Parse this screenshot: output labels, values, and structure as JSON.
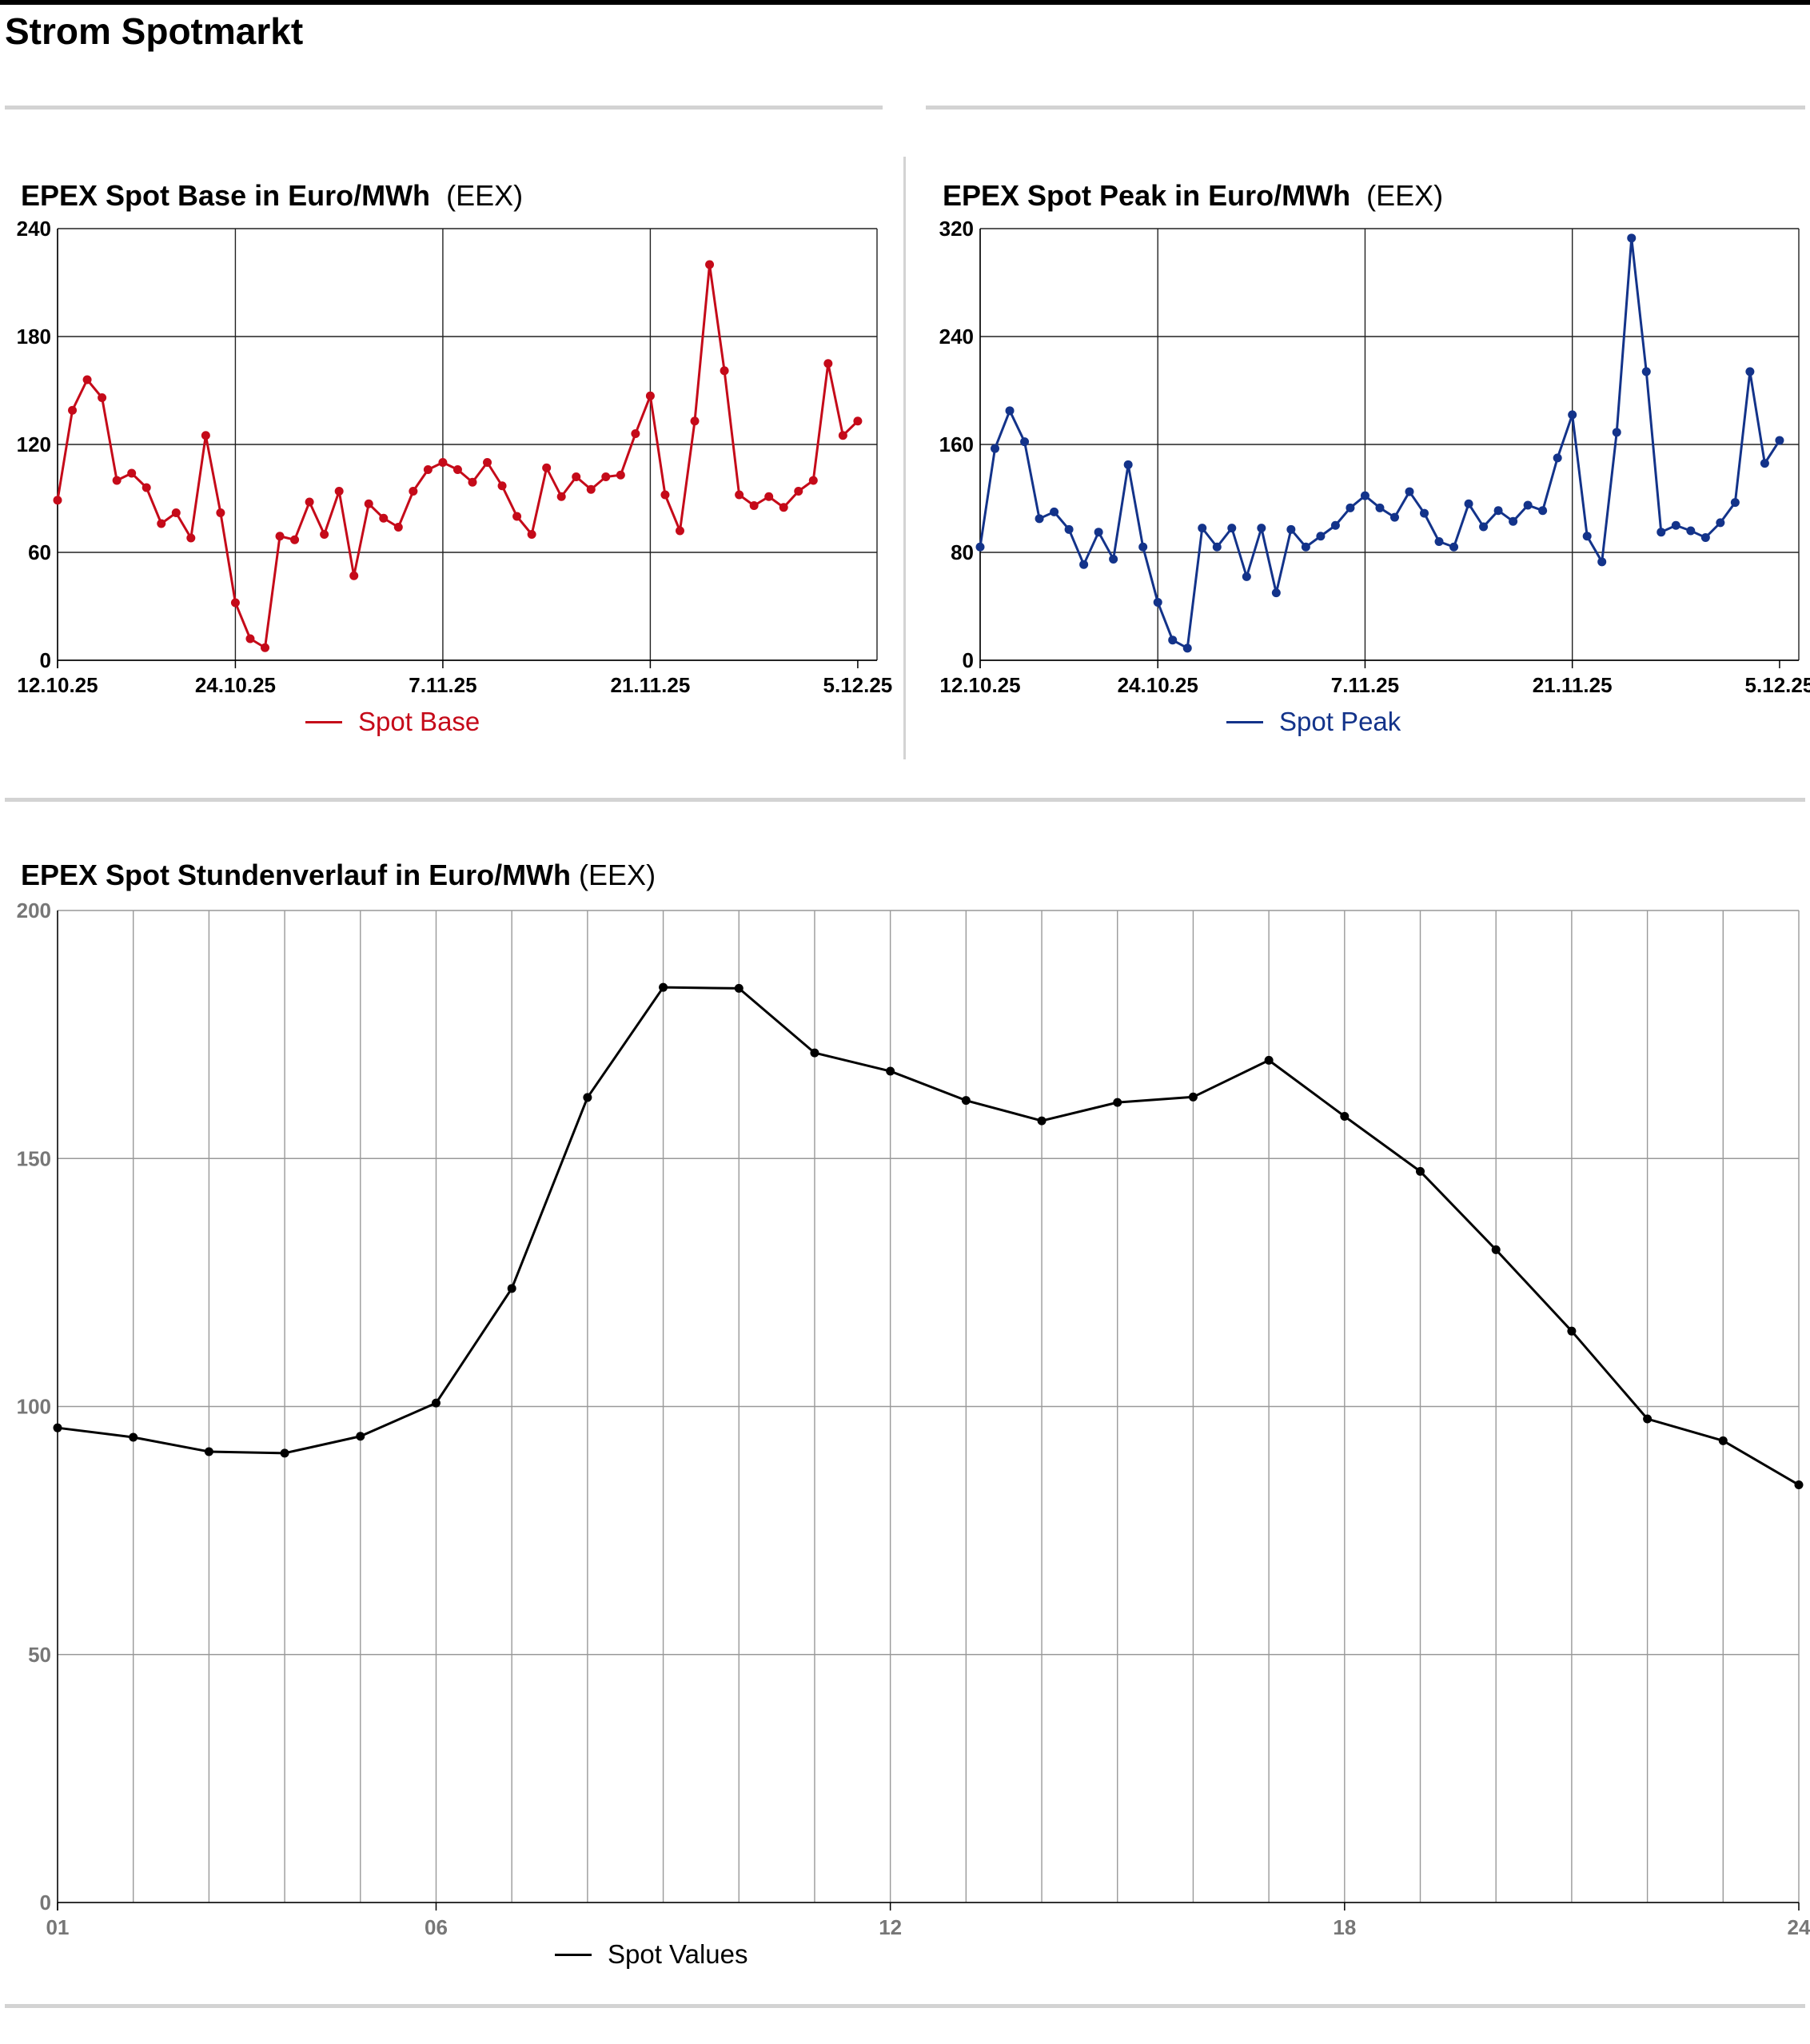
{
  "page": {
    "title": "Strom Spotmarkt"
  },
  "charts": {
    "base": {
      "title": "EPEX Spot Base in Euro/MWh",
      "source": "(EEX)",
      "legend": "Spot Base",
      "color": "#c50a19"
    },
    "peak": {
      "title": "EPEX Spot Peak in Euro/MWh",
      "source": "(EEX)",
      "legend": "Spot Peak",
      "color": "#13338a"
    },
    "hourly": {
      "title": "EPEX Spot Stundenverlauf in Euro/MWh",
      "source": "(EEX)",
      "legend": "Spot Values",
      "color": "#000000"
    }
  },
  "chart_data": [
    {
      "type": "line",
      "title": "EPEX Spot Base in Euro/MWh",
      "x_start": 0,
      "x_end": 55,
      "ylim": [
        0,
        240
      ],
      "yticks": [
        0,
        60,
        120,
        180,
        240
      ],
      "xticks": [
        {
          "pos": 0,
          "label": "12.10.25"
        },
        {
          "pos": 12,
          "label": "24.10.25"
        },
        {
          "pos": 26,
          "label": "7.11.25"
        },
        {
          "pos": 40,
          "label": "21.11.25"
        },
        {
          "pos": 54,
          "label": "5.12.25"
        }
      ],
      "grid": true,
      "legend_position": "bottom",
      "series": [
        {
          "name": "Spot Base",
          "values": [
            89,
            139,
            156,
            146,
            100,
            104,
            96,
            76,
            82,
            68,
            125,
            82,
            32,
            12,
            7,
            69,
            67,
            88,
            70,
            94,
            47,
            87,
            79,
            74,
            94,
            106,
            110,
            106,
            99,
            110,
            97,
            80,
            70,
            107,
            91,
            102,
            95,
            102,
            103,
            126,
            147,
            92,
            72,
            133,
            220,
            161,
            92,
            86,
            91,
            85,
            94,
            100,
            165,
            125,
            133
          ]
        }
      ]
    },
    {
      "type": "line",
      "title": "EPEX Spot Peak in Euro/MWh",
      "x_start": 0,
      "x_end": 55,
      "ylim": [
        0,
        320
      ],
      "yticks": [
        0,
        80,
        160,
        240,
        320
      ],
      "xticks": [
        {
          "pos": 0,
          "label": "12.10.25"
        },
        {
          "pos": 12,
          "label": "24.10.25"
        },
        {
          "pos": 26,
          "label": "7.11.25"
        },
        {
          "pos": 40,
          "label": "21.11.25"
        },
        {
          "pos": 54,
          "label": "5.12.25"
        }
      ],
      "grid": true,
      "legend_position": "bottom",
      "series": [
        {
          "name": "Spot Peak",
          "values": [
            84,
            157,
            185,
            162,
            105,
            110,
            97,
            71,
            95,
            75,
            145,
            84,
            43,
            15,
            9,
            98,
            84,
            98,
            62,
            98,
            50,
            97,
            84,
            92,
            100,
            113,
            122,
            113,
            106,
            125,
            109,
            88,
            84,
            116,
            99,
            111,
            103,
            115,
            111,
            150,
            182,
            92,
            73,
            169,
            313,
            214,
            95,
            100,
            96,
            91,
            102,
            117,
            214,
            146,
            163
          ]
        }
      ]
    },
    {
      "type": "line",
      "title": "EPEX Spot Stundenverlauf in Euro/MWh",
      "x": [
        1,
        2,
        3,
        4,
        5,
        6,
        7,
        8,
        9,
        10,
        11,
        12,
        13,
        14,
        15,
        16,
        17,
        18,
        19,
        20,
        21,
        22,
        23,
        24
      ],
      "ylim": [
        0,
        200
      ],
      "yticks": [
        0,
        50,
        100,
        150,
        200
      ],
      "xticks": [
        {
          "pos": 1,
          "label": "01"
        },
        {
          "pos": 6,
          "label": "06"
        },
        {
          "pos": 12,
          "label": "12"
        },
        {
          "pos": 18,
          "label": "18"
        },
        {
          "pos": 24,
          "label": "24"
        }
      ],
      "grid": true,
      "legend_position": "bottom",
      "series": [
        {
          "name": "Spot Values",
          "values": [
            95.7,
            93.8,
            90.9,
            90.6,
            94,
            100.7,
            123.8,
            162.3,
            184.5,
            184.3,
            171.3,
            167.6,
            161.7,
            157.6,
            161.3,
            162.4,
            169.8,
            158.5,
            147.4,
            131.6,
            115.2,
            97.5,
            93.1,
            84.2
          ]
        }
      ]
    }
  ]
}
